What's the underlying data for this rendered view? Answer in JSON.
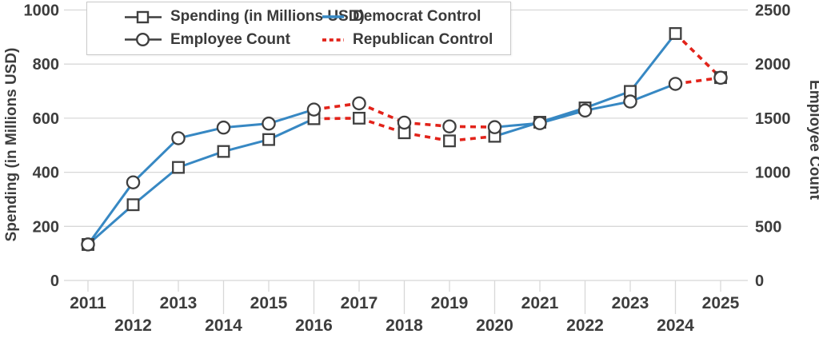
{
  "chart_data": {
    "type": "line",
    "title": "",
    "x": [
      2011,
      2012,
      2013,
      2014,
      2015,
      2016,
      2017,
      2018,
      2019,
      2020,
      2021,
      2022,
      2023,
      2024,
      2025
    ],
    "series": [
      {
        "name": "Spending (in Millions USD)",
        "axis": "left",
        "marker": "square",
        "values": [
          133,
          280,
          418,
          477,
          521,
          598,
          600,
          546,
          516,
          533,
          585,
          638,
          699,
          913,
          750
        ]
      },
      {
        "name": "Employee Count",
        "axis": "right",
        "marker": "circle",
        "values": [
          333,
          907,
          1315,
          1413,
          1450,
          1580,
          1637,
          1459,
          1424,
          1417,
          1454,
          1571,
          1654,
          1817,
          1874
        ]
      }
    ],
    "control_segments": [
      {
        "party": "Democrat Control",
        "from": 2011,
        "to": 2016,
        "color_key": "democrat",
        "dash": "solid"
      },
      {
        "party": "Republican Control",
        "from": 2016,
        "to": 2020,
        "color_key": "republican",
        "dash": "dashed"
      },
      {
        "party": "Democrat Control",
        "from": 2020,
        "to": 2024,
        "color_key": "democrat",
        "dash": "solid"
      },
      {
        "party": "Republican Control",
        "from": 2024,
        "to": 2025,
        "color_key": "republican",
        "dash": "dashed"
      }
    ],
    "left_axis": {
      "label": "Spending (in Millions USD)",
      "ticks": [
        0,
        200,
        400,
        600,
        800,
        1000
      ],
      "range": [
        0,
        1000
      ]
    },
    "right_axis": {
      "label": "Employee Count",
      "ticks": [
        0,
        500,
        1000,
        1500,
        2000,
        2500
      ],
      "range": [
        0,
        2500
      ]
    },
    "x_axis": {
      "ticks": [
        2011,
        2012,
        2013,
        2014,
        2015,
        2016,
        2017,
        2018,
        2019,
        2020,
        2021,
        2022,
        2023,
        2024,
        2025
      ]
    },
    "grid": true,
    "legend_position": "top-left"
  },
  "legend": {
    "items": [
      {
        "label": "Spending (in Millions USD)",
        "glyph": "square-marker-line"
      },
      {
        "label": "Employee Count",
        "glyph": "circle-marker-line"
      },
      {
        "label": "Democrat Control",
        "glyph": "blue-solid-line"
      },
      {
        "label": "Republican Control",
        "glyph": "red-dashed-line"
      }
    ]
  },
  "colors": {
    "democrat": "#3788c3",
    "republican": "#e2231a",
    "marker_edge": "#3f3f3f",
    "marker_fill": "#ffffff",
    "grid": "#d8d8d8",
    "text": "#3d3d3d",
    "legend_border": "#c9c9c9"
  }
}
